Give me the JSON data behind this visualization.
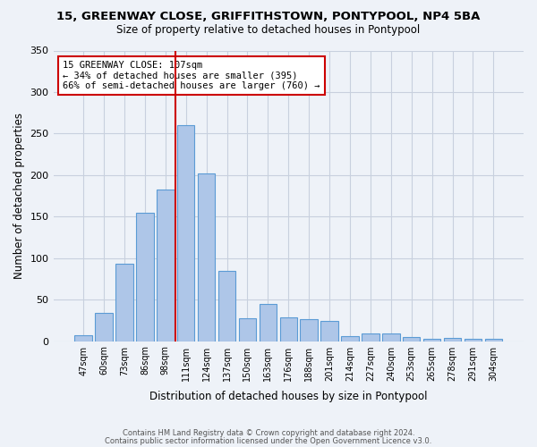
{
  "title1": "15, GREENWAY CLOSE, GRIFFITHSTOWN, PONTYPOOL, NP4 5BA",
  "title2": "Size of property relative to detached houses in Pontypool",
  "xlabel": "Distribution of detached houses by size in Pontypool",
  "ylabel": "Number of detached properties",
  "categories": [
    "47sqm",
    "60sqm",
    "73sqm",
    "86sqm",
    "98sqm",
    "111sqm",
    "124sqm",
    "137sqm",
    "150sqm",
    "163sqm",
    "176sqm",
    "188sqm",
    "201sqm",
    "214sqm",
    "227sqm",
    "240sqm",
    "253sqm",
    "265sqm",
    "278sqm",
    "291sqm",
    "304sqm"
  ],
  "values": [
    7,
    34,
    93,
    155,
    183,
    260,
    202,
    85,
    28,
    45,
    29,
    26,
    24,
    6,
    9,
    9,
    5,
    3,
    4,
    3,
    3
  ],
  "bar_color": "#aec6e8",
  "bar_edge_color": "#5b9bd5",
  "annotation_title": "15 GREENWAY CLOSE: 107sqm",
  "annotation_line1": "← 34% of detached houses are smaller (395)",
  "annotation_line2": "66% of semi-detached houses are larger (760) →",
  "prop_bin_index": 5,
  "ylim": [
    0,
    350
  ],
  "yticks": [
    0,
    50,
    100,
    150,
    200,
    250,
    300,
    350
  ],
  "footer1": "Contains HM Land Registry data © Crown copyright and database right 2024.",
  "footer2": "Contains public sector information licensed under the Open Government Licence v3.0.",
  "bg_color": "#eef2f8",
  "grid_color": "#c8d0de",
  "red_line_color": "#cc0000",
  "box_edge_color": "#cc0000"
}
